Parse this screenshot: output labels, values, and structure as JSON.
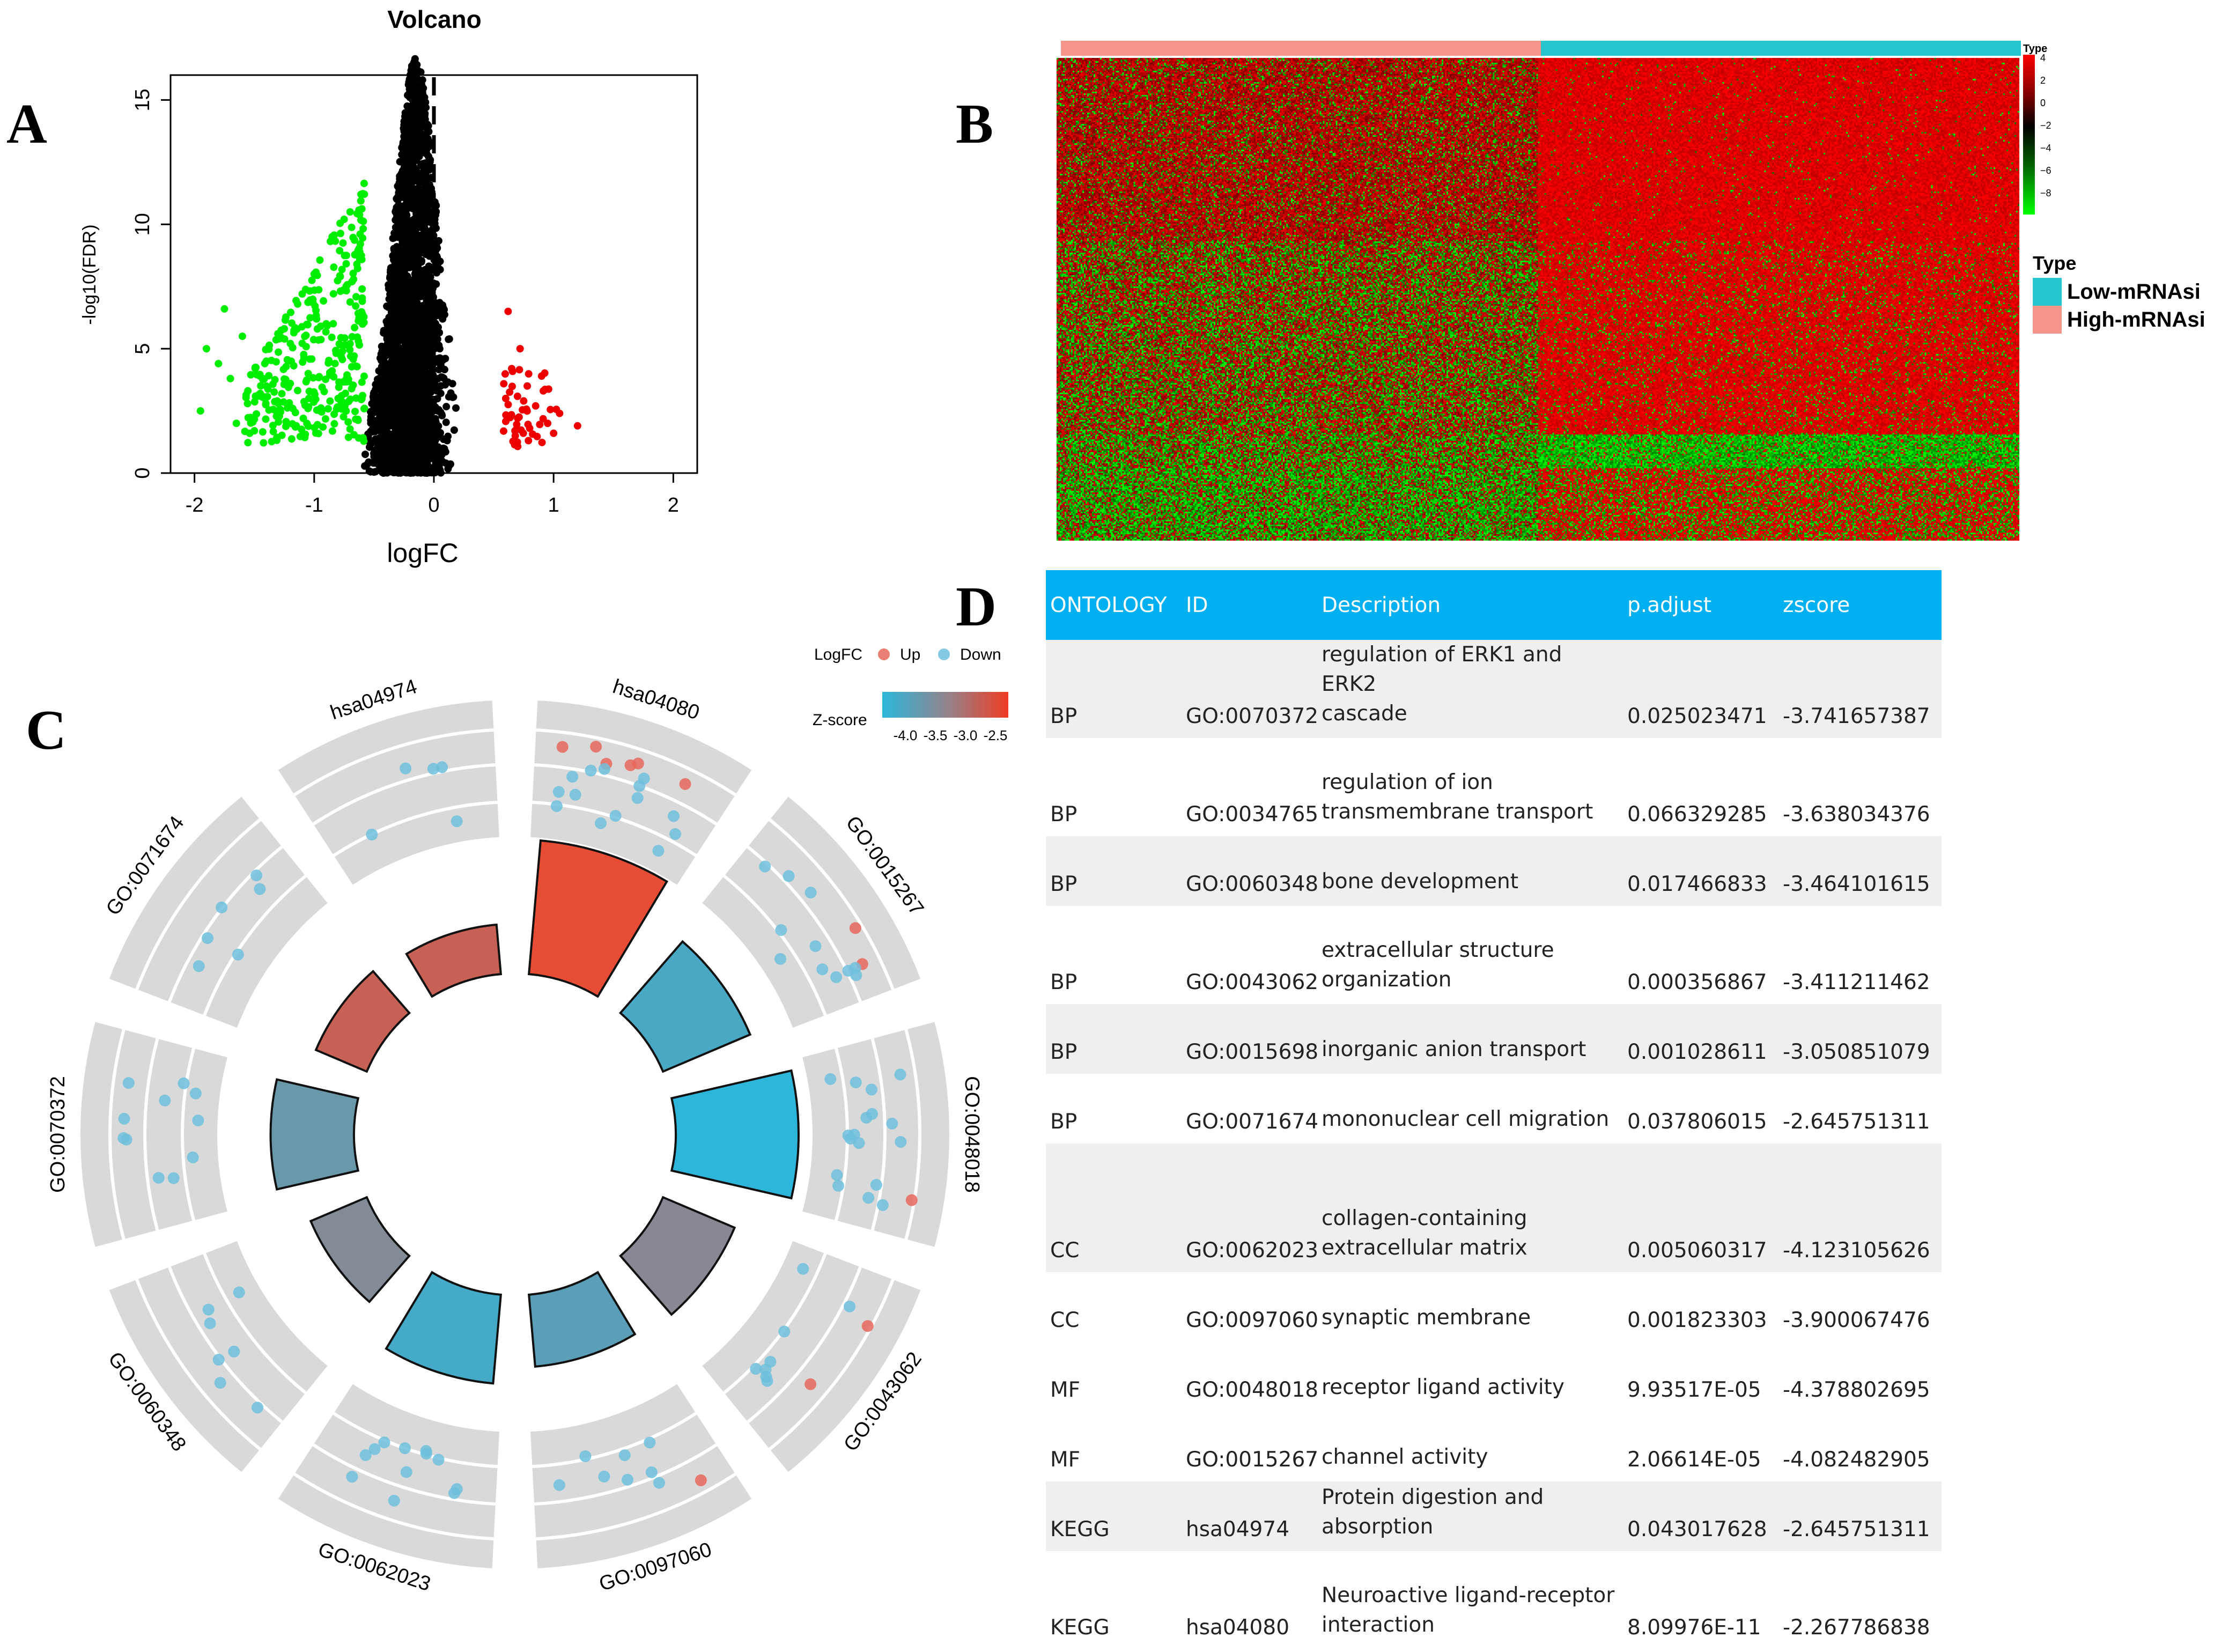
{
  "panels": {
    "a": "A",
    "b": "B",
    "c": "C",
    "d": "D"
  },
  "chart_data": [
    {
      "type": "scatter",
      "title": "Volcano",
      "xlabel": "logFC",
      "ylabel": "-log10(FDR)",
      "xlim": [
        -2.2,
        2.2
      ],
      "ylim": [
        0,
        16
      ],
      "xticks": [
        "-2",
        "-1",
        "0",
        "1",
        "2"
      ],
      "yticks": [
        "0",
        "5",
        "10",
        "15"
      ],
      "colors": {
        "down": "#00ee00",
        "up": "#ee0000",
        "ns": "#000000"
      },
      "threshold_x": 0,
      "up_points": [
        [
          0.6,
          3.0
        ],
        [
          0.65,
          4.2
        ],
        [
          0.7,
          2.2
        ],
        [
          0.72,
          5.0
        ],
        [
          0.78,
          3.5
        ],
        [
          0.8,
          1.8
        ],
        [
          0.85,
          2.7
        ],
        [
          0.9,
          3.9
        ],
        [
          0.95,
          2.0
        ],
        [
          1.0,
          1.6
        ],
        [
          1.05,
          2.4
        ],
        [
          1.2,
          1.9
        ],
        [
          0.62,
          6.5
        ],
        [
          0.68,
          1.5
        ],
        [
          0.75,
          2.9
        ]
      ],
      "down_points": [
        [
          -1.95,
          2.5
        ],
        [
          -1.9,
          5.0
        ],
        [
          -1.8,
          4.4
        ],
        [
          -1.75,
          6.6
        ],
        [
          -1.7,
          3.8
        ],
        [
          -1.65,
          2.0
        ],
        [
          -1.6,
          5.5
        ],
        [
          -1.5,
          1.7
        ],
        [
          -1.45,
          3.2
        ],
        [
          -1.4,
          4.5
        ],
        [
          -1.3,
          2.8
        ],
        [
          -1.25,
          5.8
        ],
        [
          -1.2,
          3.6
        ],
        [
          -1.15,
          1.9
        ],
        [
          -1.1,
          7.2
        ],
        [
          -1.05,
          4.0
        ],
        [
          -1.0,
          8.0
        ],
        [
          -0.95,
          2.5
        ],
        [
          -0.9,
          6.0
        ],
        [
          -0.85,
          9.5
        ],
        [
          -0.8,
          3.0
        ],
        [
          -0.75,
          10.2
        ],
        [
          -0.7,
          5.2
        ],
        [
          -0.65,
          4.3
        ],
        [
          -0.6,
          7.4
        ],
        [
          -0.58,
          2.6
        ],
        [
          -0.62,
          8.9
        ],
        [
          -0.7,
          10.5
        ]
      ]
    },
    {
      "type": "heatmap",
      "legend_title": "Type",
      "scale_title": "Type",
      "scale_ticks": [
        "4",
        "2",
        "0",
        "−2",
        "−4",
        "−6",
        "−8"
      ],
      "groups": [
        {
          "name": "Low-mRNAsi",
          "color": "#27c6cf"
        },
        {
          "name": "High-mRNAsi",
          "color": "#f5948a"
        }
      ]
    },
    {
      "type": "circular",
      "legend": {
        "logfc_label": "LogFC",
        "up_label": "Up",
        "down_label": "Down",
        "zscore_label": "Z-score",
        "zscore_ticks": [
          "-4.0",
          "-3.5",
          "-3.0",
          "-2.5"
        ]
      },
      "sectors": [
        "hsa04080",
        "GO:0015267",
        "GO:0048018",
        "GO:0043062",
        "GO:0097060",
        "GO:0062023",
        "GO:0060348",
        "GO:0070372",
        "GO:0071674",
        "hsa04974"
      ],
      "zscores": [
        -2.267786838,
        -4.082482905,
        -4.378802695,
        -3.411211462,
        -3.900067476,
        -4.123105626,
        -3.464101615,
        -3.741657387,
        -2.645751311,
        -2.645751311
      ],
      "counts": [
        20,
        13,
        18,
        10,
        9,
        12,
        7,
        11,
        6,
        5
      ]
    }
  ],
  "table": {
    "headers": [
      "ONTOLOGY",
      "ID",
      "Description",
      "p.adjust",
      "zscore"
    ],
    "rows": [
      {
        "ontology": "BP",
        "id": "GO:0070372",
        "desc1": "regulation of ERK1 and ERK2",
        "desc2": "cascade",
        "padj": "0.025023471",
        "z": "-3.741657387"
      },
      {
        "ontology": "BP",
        "id": "GO:0034765",
        "desc1": "regulation of ion",
        "desc2": "transmembrane transport",
        "padj": "0.066329285",
        "z": "-3.638034376"
      },
      {
        "ontology": "BP",
        "id": "GO:0060348",
        "desc1": "bone development",
        "desc2": "",
        "padj": "0.017466833",
        "z": "-3.464101615"
      },
      {
        "ontology": "BP",
        "id": "GO:0043062",
        "desc1": "extracellular structure",
        "desc2": "organization",
        "padj": "0.000356867",
        "z": "-3.411211462"
      },
      {
        "ontology": "BP",
        "id": "GO:0015698",
        "desc1": "inorganic anion transport",
        "desc2": "",
        "padj": "0.001028611",
        "z": "-3.050851079"
      },
      {
        "ontology": "BP",
        "id": "GO:0071674",
        "desc1": "mononuclear cell migration",
        "desc2": "",
        "padj": "0.037806015",
        "z": "-2.645751311"
      },
      {
        "ontology": "CC",
        "id": "GO:0062023",
        "desc1": "collagen-containing",
        "desc2": "extracellular matrix",
        "padj": "0.005060317",
        "z": "-4.123105626"
      },
      {
        "ontology": "CC",
        "id": "GO:0097060",
        "desc1": "synaptic membrane",
        "desc2": "",
        "padj": "0.001823303",
        "z": "-3.900067476"
      },
      {
        "ontology": "MF",
        "id": "GO:0048018",
        "desc1": "receptor ligand activity",
        "desc2": "",
        "padj": "9.93517E-05",
        "z": "-4.378802695"
      },
      {
        "ontology": "MF",
        "id": "GO:0015267",
        "desc1": "channel activity",
        "desc2": "",
        "padj": "2.06614E-05",
        "z": "-4.082482905"
      },
      {
        "ontology": "KEGG",
        "id": "hsa04974",
        "desc1": "Protein digestion and",
        "desc2": "absorption",
        "padj": "0.043017628",
        "z": "-2.645751311"
      },
      {
        "ontology": "KEGG",
        "id": "hsa04080",
        "desc1": "Neuroactive ligand-receptor",
        "desc2": "interaction",
        "padj": "8.09976E-11",
        "z": "-2.267786838"
      }
    ]
  }
}
